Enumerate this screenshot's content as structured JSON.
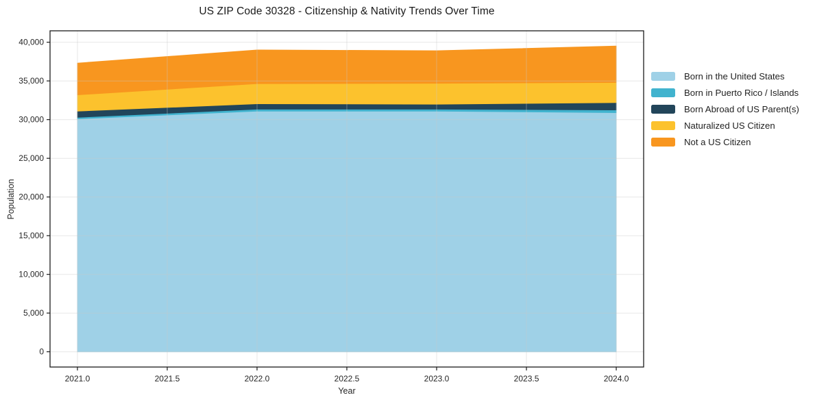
{
  "title": "US ZIP Code 30328 - Citizenship & Nativity Trends Over Time",
  "chart_data": {
    "type": "area",
    "stacked": true,
    "title": "US ZIP Code 30328 - Citizenship & Nativity Trends Over Time",
    "xlabel": "Year",
    "ylabel": "Population",
    "x": [
      2021,
      2022,
      2023,
      2024
    ],
    "series": [
      {
        "name": "Born in the United States",
        "color": "#9fd1e7",
        "values": [
          30100,
          31100,
          31100,
          30900
        ]
      },
      {
        "name": "Born in Puerto Rico / Islands",
        "color": "#41b3ce",
        "values": [
          200,
          250,
          250,
          350
        ]
      },
      {
        "name": "Born Abroad of US Parent(s)",
        "color": "#22455a",
        "values": [
          800,
          700,
          650,
          950
        ]
      },
      {
        "name": "Naturalized US Citizen",
        "color": "#fcc22d",
        "values": [
          2100,
          2600,
          2700,
          2600
        ]
      },
      {
        "name": "Not a US Citizen",
        "color": "#f8961f",
        "values": [
          4100,
          4350,
          4200,
          4700
        ]
      }
    ],
    "totals": [
      37300,
      39000,
      38900,
      39500
    ],
    "xlim": [
      2020.8475,
      2024.1525
    ],
    "ylim": [
      -1975,
      41475
    ],
    "xticks": [
      2021.0,
      2021.5,
      2022.0,
      2022.5,
      2023.0,
      2023.5,
      2024.0
    ],
    "xtick_labels": [
      "2021.0",
      "2021.5",
      "2022.0",
      "2022.5",
      "2023.0",
      "2023.5",
      "2024.0"
    ],
    "yticks": [
      0,
      5000,
      10000,
      15000,
      20000,
      25000,
      30000,
      35000,
      40000
    ],
    "ytick_labels": [
      "0",
      "5,000",
      "10,000",
      "15,000",
      "20,000",
      "25,000",
      "30,000",
      "35,000",
      "40,000"
    ],
    "grid": true,
    "legend_position": "right-outside"
  },
  "colors": {
    "background": "#ffffff",
    "grid": "#c8c8c8",
    "spine": "#1a1a1a",
    "tick": "#1a1a1a",
    "text": "#262626"
  }
}
